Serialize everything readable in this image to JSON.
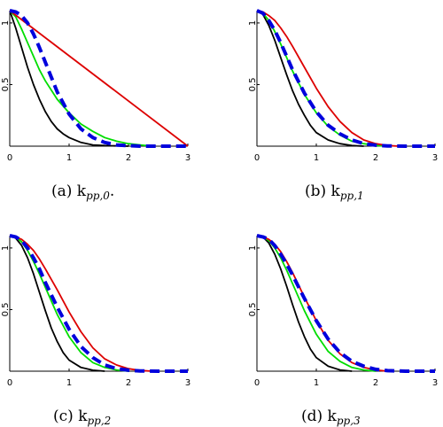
{
  "chart_data": [
    {
      "type": "line",
      "caption": "(a) k_{pp,0}.",
      "caption_main": "(a) k",
      "caption_sub": "pp,0",
      "caption_tail": ".",
      "xlim": [
        0,
        3
      ],
      "ylim": [
        0,
        1.1
      ],
      "xticks": [
        "0",
        "1",
        "2",
        "3"
      ],
      "yticks": [
        "0.5",
        "1"
      ],
      "series": [
        {
          "color": "#000000",
          "dash": false,
          "x": [
            0,
            0.1,
            0.2,
            0.3,
            0.4,
            0.5,
            0.6,
            0.7,
            0.8,
            0.9,
            1.0,
            1.2,
            1.4,
            1.6,
            1.8,
            2.0
          ],
          "y": [
            1.1,
            0.96,
            0.8,
            0.64,
            0.5,
            0.38,
            0.28,
            0.2,
            0.14,
            0.1,
            0.07,
            0.03,
            0.01,
            0.005,
            0.002,
            0
          ]
        },
        {
          "color": "#00dd00",
          "dash": false,
          "x": [
            0,
            0.1,
            0.2,
            0.3,
            0.4,
            0.5,
            0.6,
            0.8,
            1.0,
            1.2,
            1.4,
            1.6,
            1.8,
            2.0,
            2.2,
            2.4
          ],
          "y": [
            1.1,
            1.05,
            0.95,
            0.84,
            0.73,
            0.62,
            0.53,
            0.38,
            0.27,
            0.18,
            0.12,
            0.07,
            0.04,
            0.02,
            0.01,
            0
          ]
        },
        {
          "color": "#dd0000",
          "dash": false,
          "x": [
            0,
            3.0
          ],
          "y": [
            1.1,
            0
          ]
        },
        {
          "color": "#0000dd",
          "dash": true,
          "x": [
            0,
            0.1,
            0.2,
            0.3,
            0.4,
            0.5,
            0.6,
            0.7,
            0.8,
            1.0,
            1.2,
            1.4,
            1.6,
            1.8,
            2.0,
            2.2,
            2.5,
            3.0
          ],
          "y": [
            1.1,
            1.09,
            1.06,
            1.0,
            0.91,
            0.8,
            0.68,
            0.56,
            0.44,
            0.26,
            0.14,
            0.07,
            0.03,
            0.01,
            0.004,
            0,
            0,
            0
          ]
        }
      ]
    },
    {
      "type": "line",
      "caption": "(b) k_{pp,1}",
      "caption_main": "(b) k",
      "caption_sub": "pp,1",
      "caption_tail": "",
      "xlim": [
        0,
        3
      ],
      "ylim": [
        0,
        1.1
      ],
      "xticks": [
        "0",
        "1",
        "2",
        "3"
      ],
      "yticks": [
        "0.5",
        "1"
      ],
      "series": [
        {
          "color": "#000000",
          "dash": false,
          "x": [
            0,
            0.1,
            0.2,
            0.3,
            0.4,
            0.5,
            0.6,
            0.7,
            0.8,
            0.9,
            1.0,
            1.2,
            1.4,
            1.6,
            1.8
          ],
          "y": [
            1.1,
            1.07,
            0.98,
            0.86,
            0.72,
            0.58,
            0.45,
            0.34,
            0.25,
            0.17,
            0.11,
            0.05,
            0.02,
            0.005,
            0
          ]
        },
        {
          "color": "#00dd00",
          "dash": false,
          "x": [
            0,
            0.1,
            0.2,
            0.3,
            0.4,
            0.5,
            0.6,
            0.8,
            1.0,
            1.2,
            1.4,
            1.6,
            1.8,
            2.0,
            2.2
          ],
          "y": [
            1.1,
            1.08,
            1.02,
            0.93,
            0.83,
            0.72,
            0.61,
            0.42,
            0.27,
            0.16,
            0.09,
            0.04,
            0.02,
            0.006,
            0
          ]
        },
        {
          "color": "#dd0000",
          "dash": false,
          "x": [
            0,
            0.1,
            0.2,
            0.3,
            0.4,
            0.5,
            0.6,
            0.8,
            1.0,
            1.2,
            1.4,
            1.6,
            1.8,
            2.0,
            2.2,
            2.4
          ],
          "y": [
            1.1,
            1.09,
            1.06,
            1.02,
            0.96,
            0.89,
            0.81,
            0.64,
            0.47,
            0.32,
            0.2,
            0.11,
            0.05,
            0.02,
            0.005,
            0
          ]
        },
        {
          "color": "#0000dd",
          "dash": true,
          "x": [
            0,
            0.1,
            0.2,
            0.3,
            0.4,
            0.5,
            0.6,
            0.8,
            1.0,
            1.2,
            1.4,
            1.6,
            1.8,
            2.0,
            2.2,
            2.5,
            3.0
          ],
          "y": [
            1.1,
            1.08,
            1.02,
            0.94,
            0.84,
            0.73,
            0.62,
            0.43,
            0.28,
            0.17,
            0.1,
            0.05,
            0.02,
            0.008,
            0.002,
            0,
            0
          ]
        }
      ]
    },
    {
      "type": "line",
      "caption": "(c) k_{pp,2}",
      "caption_main": "(c) k",
      "caption_sub": "pp,2",
      "caption_tail": "",
      "xlim": [
        0,
        3
      ],
      "ylim": [
        0,
        1.1
      ],
      "xticks": [
        "0",
        "1",
        "2",
        "3"
      ],
      "yticks": [
        "0.5",
        "1"
      ],
      "series": [
        {
          "color": "#000000",
          "dash": false,
          "x": [
            0,
            0.1,
            0.2,
            0.3,
            0.4,
            0.5,
            0.6,
            0.7,
            0.8,
            0.9,
            1.0,
            1.2,
            1.4,
            1.6
          ],
          "y": [
            1.1,
            1.08,
            1.02,
            0.92,
            0.79,
            0.64,
            0.49,
            0.35,
            0.24,
            0.15,
            0.09,
            0.03,
            0.008,
            0
          ]
        },
        {
          "color": "#00dd00",
          "dash": false,
          "x": [
            0,
            0.1,
            0.2,
            0.3,
            0.4,
            0.5,
            0.6,
            0.8,
            1.0,
            1.2,
            1.4,
            1.6,
            1.8,
            2.0
          ],
          "y": [
            1.1,
            1.09,
            1.05,
            0.98,
            0.89,
            0.79,
            0.68,
            0.46,
            0.28,
            0.15,
            0.07,
            0.03,
            0.01,
            0
          ]
        },
        {
          "color": "#dd0000",
          "dash": false,
          "x": [
            0,
            0.1,
            0.2,
            0.3,
            0.4,
            0.5,
            0.6,
            0.8,
            1.0,
            1.2,
            1.4,
            1.6,
            1.8,
            2.0,
            2.2,
            2.4
          ],
          "y": [
            1.1,
            1.09,
            1.07,
            1.03,
            0.98,
            0.91,
            0.83,
            0.66,
            0.48,
            0.32,
            0.19,
            0.1,
            0.05,
            0.02,
            0.006,
            0
          ]
        },
        {
          "color": "#0000dd",
          "dash": true,
          "x": [
            0,
            0.1,
            0.2,
            0.3,
            0.4,
            0.5,
            0.6,
            0.8,
            1.0,
            1.2,
            1.4,
            1.6,
            1.8,
            2.0,
            2.2,
            2.5,
            3.0
          ],
          "y": [
            1.1,
            1.09,
            1.06,
            1.0,
            0.92,
            0.83,
            0.72,
            0.52,
            0.34,
            0.2,
            0.11,
            0.05,
            0.02,
            0.008,
            0.002,
            0,
            0
          ]
        }
      ]
    },
    {
      "type": "line",
      "caption": "(d) k_{pp,3}",
      "caption_main": "(d) k",
      "caption_sub": "pp,3",
      "caption_tail": "",
      "xlim": [
        0,
        3
      ],
      "ylim": [
        0,
        1.1
      ],
      "xticks": [
        "0",
        "1",
        "2",
        "3"
      ],
      "yticks": [
        "0.5",
        "1"
      ],
      "series": [
        {
          "color": "#000000",
          "dash": false,
          "x": [
            0,
            0.1,
            0.2,
            0.3,
            0.4,
            0.5,
            0.6,
            0.7,
            0.8,
            0.9,
            1.0,
            1.2,
            1.4,
            1.6
          ],
          "y": [
            1.1,
            1.09,
            1.04,
            0.95,
            0.83,
            0.69,
            0.54,
            0.4,
            0.28,
            0.18,
            0.11,
            0.04,
            0.01,
            0
          ]
        },
        {
          "color": "#00dd00",
          "dash": false,
          "x": [
            0,
            0.1,
            0.2,
            0.3,
            0.4,
            0.5,
            0.6,
            0.8,
            1.0,
            1.2,
            1.4,
            1.6,
            1.8,
            2.0
          ],
          "y": [
            1.1,
            1.09,
            1.06,
            1.0,
            0.92,
            0.82,
            0.71,
            0.49,
            0.3,
            0.16,
            0.08,
            0.03,
            0.01,
            0
          ]
        },
        {
          "color": "#dd0000",
          "dash": false,
          "x": [
            0,
            0.1,
            0.2,
            0.3,
            0.4,
            0.5,
            0.6,
            0.8,
            1.0,
            1.2,
            1.4,
            1.6,
            1.8,
            2.0,
            2.2
          ],
          "y": [
            1.1,
            1.09,
            1.07,
            1.03,
            0.97,
            0.89,
            0.8,
            0.6,
            0.41,
            0.25,
            0.14,
            0.07,
            0.03,
            0.01,
            0
          ]
        },
        {
          "color": "#0000dd",
          "dash": true,
          "x": [
            0,
            0.1,
            0.2,
            0.3,
            0.4,
            0.5,
            0.6,
            0.8,
            1.0,
            1.2,
            1.4,
            1.6,
            1.8,
            2.0,
            2.2,
            2.5,
            3.0
          ],
          "y": [
            1.1,
            1.09,
            1.07,
            1.02,
            0.95,
            0.87,
            0.78,
            0.59,
            0.41,
            0.26,
            0.15,
            0.08,
            0.04,
            0.015,
            0.004,
            0,
            0
          ]
        }
      ]
    }
  ]
}
